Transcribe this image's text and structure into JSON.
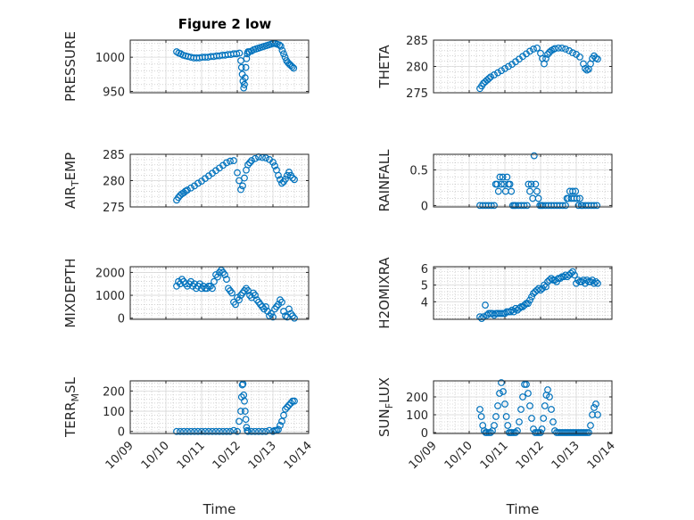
{
  "figure_title": "Figure 2 low",
  "colors": {
    "marker": "#0072BD",
    "axis": "#262626",
    "grid": "#b8b8b8"
  },
  "chart_data": [
    {
      "type": "scatter",
      "id": "pressure",
      "ylabel": "PRESSURE",
      "yticks": [
        950,
        1000
      ],
      "yticklabels": [
        "950",
        "1000"
      ],
      "ylim": [
        948,
        1025
      ],
      "xlim": [
        0,
        5
      ],
      "show_xticklabels": false,
      "x": [
        1.3,
        1.36,
        1.42,
        1.48,
        1.55,
        1.62,
        1.7,
        1.78,
        1.86,
        1.94,
        2.02,
        2.1,
        2.18,
        2.26,
        2.34,
        2.42,
        2.5,
        2.58,
        2.66,
        2.74,
        2.82,
        2.9,
        2.98,
        3.06,
        3.1,
        3.12,
        3.14,
        3.16,
        3.18,
        3.2,
        3.22,
        3.24,
        3.26,
        3.28,
        3.3,
        3.34,
        3.4,
        3.46,
        3.52,
        3.58,
        3.64,
        3.7,
        3.76,
        3.82,
        3.88,
        3.94,
        4.0,
        4.06,
        4.12,
        4.18,
        4.22,
        4.26,
        4.3,
        4.34,
        4.38,
        4.42,
        4.46,
        4.5,
        4.54,
        4.58
      ],
      "y": [
        1008,
        1006,
        1005,
        1003,
        1002,
        1001,
        1000,
        999,
        999,
        999,
        1000,
        1000,
        1000,
        1001,
        1001,
        1002,
        1002,
        1003,
        1003,
        1004,
        1004,
        1005,
        1005,
        1006,
        995,
        985,
        975,
        965,
        955,
        960,
        970,
        985,
        998,
        1005,
        1008,
        1008,
        1009,
        1011,
        1012,
        1013,
        1014,
        1015,
        1016,
        1017,
        1018,
        1019,
        1020,
        1020,
        1019,
        1018,
        1016,
        1010,
        1005,
        1000,
        995,
        992,
        990,
        988,
        986,
        984
      ]
    },
    {
      "type": "scatter",
      "id": "theta",
      "ylabel": "THETA",
      "yticks": [
        275,
        280,
        285
      ],
      "yticklabels": [
        "275",
        "280",
        "285"
      ],
      "ylim": [
        275,
        285
      ],
      "xlim": [
        0,
        5
      ],
      "show_xticklabels": false,
      "x": [
        1.3,
        1.35,
        1.4,
        1.45,
        1.5,
        1.55,
        1.6,
        1.7,
        1.8,
        1.9,
        2.0,
        2.1,
        2.2,
        2.3,
        2.4,
        2.5,
        2.6,
        2.7,
        2.8,
        2.9,
        3.0,
        3.05,
        3.1,
        3.15,
        3.2,
        3.25,
        3.3,
        3.35,
        3.4,
        3.5,
        3.6,
        3.7,
        3.8,
        3.9,
        4.0,
        4.1,
        4.2,
        4.25,
        4.3,
        4.35,
        4.4,
        4.45,
        4.5,
        4.55,
        4.6
      ],
      "y": [
        275.8,
        276.3,
        276.8,
        277.1,
        277.4,
        277.7,
        278.0,
        278.4,
        278.8,
        279.2,
        279.6,
        280.0,
        280.4,
        280.9,
        281.4,
        281.9,
        282.4,
        282.9,
        283.3,
        283.5,
        282.5,
        281.5,
        280.5,
        281.5,
        282.3,
        282.7,
        283.0,
        283.2,
        283.4,
        283.5,
        283.5,
        283.3,
        283.0,
        282.6,
        282.3,
        281.8,
        280.5,
        279.6,
        279.3,
        279.5,
        280.5,
        281.5,
        282.0,
        281.6,
        281.4
      ]
    },
    {
      "type": "scatter",
      "id": "air_temp",
      "ylabel": "AIR_TEMP",
      "yticks": [
        275,
        280,
        285
      ],
      "yticklabels": [
        "275",
        "280",
        "285"
      ],
      "ylim": [
        275,
        285
      ],
      "xlim": [
        0,
        5
      ],
      "show_xticklabels": false,
      "x": [
        1.3,
        1.35,
        1.4,
        1.45,
        1.5,
        1.55,
        1.6,
        1.7,
        1.8,
        1.9,
        2.0,
        2.1,
        2.2,
        2.3,
        2.4,
        2.5,
        2.6,
        2.7,
        2.8,
        2.9,
        3.0,
        3.05,
        3.1,
        3.15,
        3.2,
        3.25,
        3.3,
        3.35,
        3.4,
        3.5,
        3.6,
        3.7,
        3.8,
        3.9,
        4.0,
        4.05,
        4.1,
        4.15,
        4.2,
        4.25,
        4.3,
        4.35,
        4.4,
        4.45,
        4.5,
        4.55,
        4.6
      ],
      "y": [
        276.3,
        276.8,
        277.2,
        277.5,
        277.7,
        278.0,
        278.2,
        278.6,
        279.0,
        279.5,
        279.9,
        280.4,
        280.9,
        281.4,
        281.9,
        282.4,
        282.9,
        283.4,
        283.7,
        283.8,
        281.5,
        280.0,
        278.3,
        279.0,
        280.5,
        282.0,
        283.0,
        283.4,
        283.8,
        284.2,
        284.5,
        284.4,
        284.3,
        284.0,
        283.5,
        282.8,
        282.0,
        281.0,
        280.2,
        279.5,
        279.8,
        280.3,
        281.0,
        281.6,
        281.0,
        280.5,
        280.2
      ]
    },
    {
      "type": "scatter",
      "id": "rainfall",
      "ylabel": "RAINFALL",
      "yticks": [
        0,
        0.5
      ],
      "yticklabels": [
        "0",
        "0.5"
      ],
      "ylim": [
        -0.02,
        0.72
      ],
      "xlim": [
        0,
        5
      ],
      "show_xticklabels": false,
      "x": [
        1.3,
        1.38,
        1.46,
        1.54,
        1.62,
        1.7,
        1.74,
        1.78,
        1.82,
        1.86,
        1.9,
        1.94,
        1.98,
        2.02,
        2.06,
        2.1,
        2.14,
        2.18,
        2.22,
        2.26,
        2.3,
        2.38,
        2.46,
        2.54,
        2.62,
        2.66,
        2.7,
        2.74,
        2.78,
        2.82,
        2.86,
        2.9,
        2.94,
        2.98,
        3.02,
        3.06,
        3.14,
        3.22,
        3.3,
        3.38,
        3.46,
        3.54,
        3.62,
        3.7,
        3.74,
        3.78,
        3.82,
        3.86,
        3.9,
        3.94,
        3.98,
        4.02,
        4.06,
        4.1,
        4.14,
        4.18,
        4.26,
        4.34,
        4.42,
        4.5,
        4.58
      ],
      "y": [
        0,
        0,
        0,
        0,
        0,
        0,
        0.3,
        0.3,
        0.2,
        0.4,
        0.3,
        0.4,
        0.3,
        0.2,
        0.4,
        0.3,
        0.3,
        0.2,
        0,
        0,
        0,
        0,
        0,
        0,
        0,
        0.3,
        0.2,
        0.3,
        0.1,
        0.7,
        0.3,
        0.2,
        0.1,
        0,
        0,
        0,
        0,
        0,
        0,
        0,
        0,
        0,
        0,
        0,
        0.1,
        0.1,
        0.2,
        0.1,
        0.2,
        0.1,
        0.2,
        0.1,
        0,
        0.1,
        0,
        0,
        0,
        0,
        0,
        0,
        0
      ]
    },
    {
      "type": "scatter",
      "id": "mixdepth",
      "ylabel": "MIXDEPTH",
      "yticks": [
        0,
        1000,
        2000
      ],
      "yticklabels": [
        "0",
        "1000",
        "2000"
      ],
      "ylim": [
        -50,
        2250
      ],
      "xlim": [
        0,
        5
      ],
      "show_xticklabels": false,
      "x": [
        1.3,
        1.35,
        1.4,
        1.45,
        1.5,
        1.55,
        1.6,
        1.65,
        1.7,
        1.75,
        1.8,
        1.85,
        1.9,
        1.95,
        2.0,
        2.05,
        2.1,
        2.15,
        2.2,
        2.25,
        2.3,
        2.35,
        2.4,
        2.45,
        2.5,
        2.55,
        2.6,
        2.65,
        2.7,
        2.75,
        2.8,
        2.85,
        2.9,
        2.95,
        3.0,
        3.05,
        3.1,
        3.15,
        3.2,
        3.25,
        3.3,
        3.35,
        3.4,
        3.45,
        3.5,
        3.55,
        3.6,
        3.65,
        3.7,
        3.75,
        3.8,
        3.85,
        3.9,
        3.95,
        4.0,
        4.05,
        4.1,
        4.15,
        4.2,
        4.25,
        4.3,
        4.35,
        4.4,
        4.45,
        4.5,
        4.55,
        4.6
      ],
      "y": [
        1400,
        1600,
        1500,
        1700,
        1600,
        1500,
        1400,
        1500,
        1600,
        1400,
        1500,
        1300,
        1400,
        1500,
        1300,
        1400,
        1300,
        1300,
        1400,
        1400,
        1300,
        1600,
        1900,
        1800,
        2000,
        2100,
        2000,
        1900,
        1700,
        1300,
        1200,
        1100,
        700,
        600,
        900,
        800,
        1000,
        1100,
        1200,
        1300,
        1200,
        1000,
        900,
        1100,
        1000,
        800,
        700,
        600,
        500,
        400,
        500,
        300,
        100,
        200,
        50,
        400,
        500,
        600,
        800,
        700,
        300,
        100,
        50,
        400,
        200,
        100,
        0
      ]
    },
    {
      "type": "scatter",
      "id": "h2omixra",
      "ylabel": "H2OMIXRA",
      "yticks": [
        4,
        5,
        6
      ],
      "yticklabels": [
        "4",
        "5",
        "6"
      ],
      "ylim": [
        2.95,
        6.1
      ],
      "xlim": [
        0,
        5
      ],
      "show_xticklabels": false,
      "x": [
        1.3,
        1.35,
        1.4,
        1.45,
        1.5,
        1.55,
        1.6,
        1.65,
        1.7,
        1.75,
        1.8,
        1.85,
        1.9,
        1.95,
        2.0,
        2.05,
        2.1,
        2.15,
        2.2,
        2.25,
        2.3,
        2.35,
        2.4,
        2.45,
        2.5,
        2.55,
        2.6,
        2.65,
        2.7,
        2.75,
        2.8,
        2.85,
        2.9,
        2.95,
        3.0,
        3.05,
        3.1,
        3.15,
        3.2,
        3.25,
        3.3,
        3.35,
        3.4,
        3.45,
        3.5,
        3.55,
        3.6,
        3.65,
        3.7,
        3.75,
        3.8,
        3.85,
        3.9,
        3.95,
        4.0,
        4.05,
        4.1,
        4.15,
        4.2,
        4.25,
        4.3,
        4.35,
        4.4,
        4.45,
        4.5,
        4.55,
        4.6
      ],
      "y": [
        3.1,
        3.0,
        3.1,
        3.8,
        3.2,
        3.3,
        3.3,
        3.3,
        3.2,
        3.3,
        3.3,
        3.3,
        3.3,
        3.3,
        3.3,
        3.4,
        3.4,
        3.4,
        3.5,
        3.4,
        3.6,
        3.5,
        3.6,
        3.7,
        3.7,
        3.8,
        3.9,
        3.9,
        4.1,
        4.3,
        4.5,
        4.6,
        4.7,
        4.8,
        4.7,
        4.8,
        5.0,
        4.9,
        5.2,
        5.3,
        5.4,
        5.3,
        5.3,
        5.2,
        5.4,
        5.4,
        5.5,
        5.5,
        5.6,
        5.5,
        5.6,
        5.7,
        5.8,
        5.6,
        5.1,
        5.3,
        5.2,
        5.2,
        5.3,
        5.1,
        5.3,
        5.2,
        5.2,
        5.3,
        5.1,
        5.2,
        5.1
      ]
    },
    {
      "type": "scatter",
      "id": "terr_msl",
      "ylabel": "TERR_MSL",
      "yticks": [
        0,
        100,
        200
      ],
      "yticklabels": [
        "0",
        "100",
        "200"
      ],
      "ylim": [
        -10,
        250
      ],
      "xlim": [
        0,
        5
      ],
      "show_xticklabels": true,
      "xticks": [
        0,
        1,
        2,
        3,
        4,
        5
      ],
      "xticklabels": [
        "10/09",
        "10/10",
        "10/11",
        "10/12",
        "10/13",
        "10/14"
      ],
      "xlabel": "Time",
      "x": [
        1.3,
        1.4,
        1.5,
        1.6,
        1.7,
        1.8,
        1.9,
        2.0,
        2.1,
        2.2,
        2.3,
        2.4,
        2.5,
        2.6,
        2.7,
        2.8,
        2.9,
        3.0,
        3.05,
        3.1,
        3.12,
        3.14,
        3.16,
        3.18,
        3.2,
        3.22,
        3.24,
        3.26,
        3.28,
        3.3,
        3.4,
        3.5,
        3.6,
        3.7,
        3.8,
        3.9,
        4.0,
        4.05,
        4.1,
        4.15,
        4.2,
        4.25,
        4.3,
        4.35,
        4.4,
        4.45,
        4.5,
        4.55,
        4.6
      ],
      "y": [
        0,
        0,
        0,
        0,
        0,
        0,
        0,
        0,
        0,
        0,
        0,
        0,
        0,
        0,
        0,
        0,
        5,
        0,
        50,
        100,
        170,
        230,
        235,
        180,
        150,
        100,
        60,
        20,
        5,
        0,
        0,
        0,
        0,
        0,
        0,
        5,
        0,
        5,
        5,
        10,
        30,
        50,
        80,
        110,
        120,
        130,
        140,
        150,
        150
      ]
    },
    {
      "type": "scatter",
      "id": "sun_flux",
      "ylabel": "SUN_FLUX",
      "yticks": [
        0,
        100,
        200
      ],
      "yticklabels": [
        "0",
        "100",
        "200"
      ],
      "ylim": [
        -5,
        290
      ],
      "xlim": [
        0,
        5
      ],
      "show_xticklabels": true,
      "xticks": [
        0,
        1,
        2,
        3,
        4,
        5
      ],
      "xticklabels": [
        "10/09",
        "10/10",
        "10/11",
        "10/12",
        "10/13",
        "10/14"
      ],
      "xlabel": "Time",
      "x": [
        1.3,
        1.34,
        1.38,
        1.42,
        1.46,
        1.5,
        1.55,
        1.6,
        1.65,
        1.7,
        1.75,
        1.8,
        1.85,
        1.9,
        1.95,
        2.0,
        2.04,
        2.08,
        2.12,
        2.16,
        2.2,
        2.25,
        2.3,
        2.35,
        2.4,
        2.45,
        2.5,
        2.55,
        2.6,
        2.65,
        2.7,
        2.75,
        2.8,
        2.85,
        2.9,
        2.95,
        3.0,
        3.04,
        3.08,
        3.12,
        3.16,
        3.2,
        3.25,
        3.3,
        3.35,
        3.4,
        3.45,
        3.5,
        3.55,
        3.6,
        3.65,
        3.7,
        3.75,
        3.8,
        3.85,
        3.9,
        3.95,
        4.0,
        4.05,
        4.1,
        4.15,
        4.2,
        4.25,
        4.3,
        4.35,
        4.4,
        4.45,
        4.5,
        4.55,
        4.6
      ],
      "y": [
        130,
        90,
        40,
        10,
        0,
        0,
        0,
        0,
        10,
        40,
        90,
        150,
        220,
        280,
        230,
        160,
        90,
        40,
        0,
        0,
        0,
        0,
        0,
        10,
        60,
        130,
        200,
        270,
        270,
        220,
        150,
        80,
        20,
        0,
        0,
        0,
        0,
        20,
        80,
        150,
        210,
        240,
        200,
        130,
        60,
        10,
        0,
        0,
        0,
        0,
        0,
        0,
        0,
        0,
        0,
        0,
        0,
        0,
        0,
        0,
        0,
        0,
        0,
        0,
        0,
        40,
        100,
        140,
        160,
        100
      ]
    }
  ]
}
